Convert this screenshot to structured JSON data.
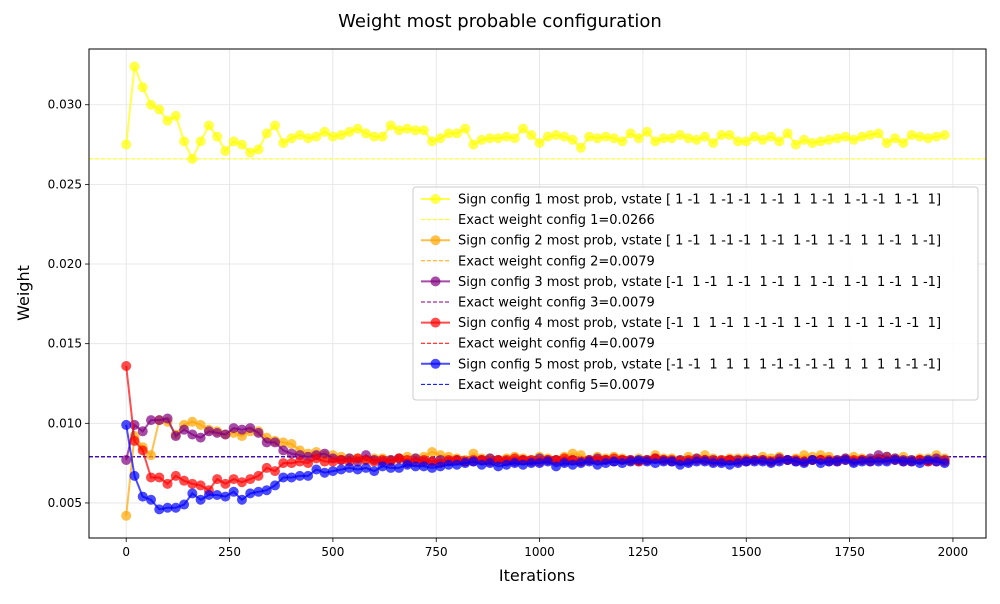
{
  "chart_data": {
    "type": "line",
    "title": "Weight most probable configuration",
    "xlabel": "Iterations",
    "ylabel": "Weight",
    "xlim": [
      -90,
      2080
    ],
    "ylim": [
      0.0028,
      0.0335
    ],
    "xticks": [
      0,
      250,
      500,
      750,
      1000,
      1250,
      1500,
      1750,
      2000
    ],
    "xtick_labels": [
      "0",
      "250",
      "500",
      "750",
      "1000",
      "1250",
      "1500",
      "1750",
      "2000"
    ],
    "yticks": [
      0.005,
      0.01,
      0.015,
      0.02,
      0.025,
      0.03
    ],
    "ytick_labels": [
      "0.005",
      "0.010",
      "0.015",
      "0.020",
      "0.025",
      "0.030"
    ],
    "grid": true,
    "legend_position": "center-right",
    "x": [
      0,
      20,
      40,
      60,
      80,
      100,
      120,
      140,
      160,
      180,
      200,
      220,
      240,
      260,
      280,
      300,
      320,
      340,
      360,
      380,
      400,
      420,
      440,
      460,
      480,
      500,
      520,
      540,
      560,
      580,
      600,
      620,
      640,
      660,
      680,
      700,
      720,
      740,
      760,
      780,
      800,
      820,
      840,
      860,
      880,
      900,
      920,
      940,
      960,
      980,
      1000,
      1020,
      1040,
      1060,
      1080,
      1100,
      1120,
      1140,
      1160,
      1180,
      1200,
      1220,
      1240,
      1260,
      1280,
      1300,
      1320,
      1340,
      1360,
      1380,
      1400,
      1420,
      1440,
      1460,
      1480,
      1500,
      1520,
      1540,
      1560,
      1580,
      1600,
      1620,
      1640,
      1660,
      1680,
      1700,
      1720,
      1740,
      1760,
      1780,
      1800,
      1820,
      1840,
      1860,
      1880,
      1900,
      1920,
      1940,
      1960,
      1980
    ],
    "series": [
      {
        "name": "Sign config 1 most prob, vstate [ 1 -1  1 -1 -1  1 -1  1  1 -1  1 -1 -1  1 -1  1]",
        "color": "#ffff00",
        "values": [
          0.0275,
          0.0324,
          0.0311,
          0.03,
          0.0297,
          0.029,
          0.0293,
          0.0277,
          0.0266,
          0.0277,
          0.0287,
          0.028,
          0.0271,
          0.0277,
          0.0275,
          0.027,
          0.0272,
          0.0282,
          0.0287,
          0.0276,
          0.0279,
          0.0281,
          0.0279,
          0.028,
          0.0283,
          0.028,
          0.0281,
          0.0283,
          0.0285,
          0.0282,
          0.028,
          0.028,
          0.0287,
          0.0284,
          0.0285,
          0.0284,
          0.0284,
          0.0277,
          0.0279,
          0.0282,
          0.0282,
          0.0285,
          0.0275,
          0.0278,
          0.0279,
          0.0279,
          0.028,
          0.0279,
          0.0285,
          0.0281,
          0.0276,
          0.028,
          0.0281,
          0.028,
          0.0278,
          0.0273,
          0.028,
          0.0279,
          0.028,
          0.0279,
          0.0277,
          0.0282,
          0.0279,
          0.0283,
          0.0277,
          0.0279,
          0.0279,
          0.0281,
          0.0279,
          0.0278,
          0.028,
          0.0276,
          0.0281,
          0.0281,
          0.0277,
          0.0277,
          0.028,
          0.0278,
          0.028,
          0.0277,
          0.0282,
          0.0275,
          0.0278,
          0.0276,
          0.0277,
          0.0278,
          0.0279,
          0.028,
          0.0278,
          0.028,
          0.0281,
          0.0282,
          0.0276,
          0.0279,
          0.0276,
          0.0281,
          0.028,
          0.0279,
          0.028,
          0.0281
        ]
      },
      {
        "name": "Sign config 2 most prob, vstate [ 1 -1  1 -1 -1  1 -1  1 -1  1 -1  1  1 -1  1 -1]",
        "color": "#ffa500",
        "values": [
          0.0042,
          0.0092,
          0.0085,
          0.008,
          0.0102,
          0.0101,
          0.0093,
          0.0099,
          0.0101,
          0.0099,
          0.0096,
          0.0095,
          0.0093,
          0.0094,
          0.0092,
          0.0095,
          0.0095,
          0.0091,
          0.0089,
          0.0088,
          0.0087,
          0.0083,
          0.0081,
          0.0082,
          0.008,
          0.008,
          0.0079,
          0.0078,
          0.0078,
          0.0077,
          0.0078,
          0.0078,
          0.0077,
          0.0078,
          0.0079,
          0.0078,
          0.0079,
          0.0082,
          0.008,
          0.0079,
          0.0078,
          0.0077,
          0.0081,
          0.0078,
          0.0078,
          0.0077,
          0.0078,
          0.0079,
          0.0078,
          0.0077,
          0.0079,
          0.0078,
          0.0077,
          0.0079,
          0.0081,
          0.008,
          0.0077,
          0.0079,
          0.0078,
          0.0079,
          0.0078,
          0.0076,
          0.0078,
          0.0077,
          0.008,
          0.0078,
          0.0078,
          0.0077,
          0.0079,
          0.0078,
          0.008,
          0.0078,
          0.0077,
          0.0078,
          0.0078,
          0.0078,
          0.0077,
          0.0079,
          0.0078,
          0.0079,
          0.0077,
          0.0078,
          0.008,
          0.0079,
          0.008,
          0.0079,
          0.0077,
          0.0078,
          0.0079,
          0.0078,
          0.0077,
          0.0078,
          0.0079,
          0.0078,
          0.0079,
          0.0077,
          0.0078,
          0.0078,
          0.008,
          0.0078
        ]
      },
      {
        "name": "Sign config 3 most prob, vstate [-1  1 -1  1 -1  1 -1  1  1 -1  1 -1  1 -1  1 -1]",
        "color": "#800080",
        "values": [
          0.0077,
          0.0099,
          0.0095,
          0.0102,
          0.0102,
          0.0103,
          0.0092,
          0.0096,
          0.0093,
          0.0091,
          0.0095,
          0.0094,
          0.0093,
          0.0097,
          0.0096,
          0.0097,
          0.0094,
          0.0088,
          0.0088,
          0.0083,
          0.0081,
          0.008,
          0.0079,
          0.008,
          0.0081,
          0.0078,
          0.0077,
          0.0078,
          0.0076,
          0.008,
          0.0077,
          0.0076,
          0.0077,
          0.0078,
          0.0075,
          0.0078,
          0.0076,
          0.0076,
          0.0077,
          0.0076,
          0.0077,
          0.0076,
          0.0076,
          0.0077,
          0.0078,
          0.0077,
          0.0076,
          0.0076,
          0.0077,
          0.0076,
          0.0078,
          0.0077,
          0.0077,
          0.0076,
          0.0077,
          0.0076,
          0.0077,
          0.0078,
          0.0077,
          0.0076,
          0.0077,
          0.0077,
          0.0076,
          0.0077,
          0.0078,
          0.0077,
          0.0076,
          0.0077,
          0.0076,
          0.0078,
          0.0077,
          0.0077,
          0.0076,
          0.0077,
          0.0077,
          0.0076,
          0.0077,
          0.0077,
          0.0076,
          0.0078,
          0.0077,
          0.0076,
          0.0076,
          0.0077,
          0.0077,
          0.0076,
          0.0077,
          0.0078,
          0.0076,
          0.0077,
          0.0078,
          0.008,
          0.0079,
          0.0078,
          0.0077,
          0.0077,
          0.0077,
          0.0076,
          0.0078,
          0.0077
        ]
      },
      {
        "name": "Sign config 4 most prob, vstate [-1  1  1 -1  1 -1 -1  1 -1  1  1 -1  1 -1 -1  1]",
        "color": "#ff0000",
        "values": [
          0.0136,
          0.0089,
          0.0083,
          0.0066,
          0.0066,
          0.0062,
          0.0067,
          0.0064,
          0.0062,
          0.0061,
          0.0058,
          0.0065,
          0.0062,
          0.0065,
          0.0063,
          0.0065,
          0.0067,
          0.0072,
          0.007,
          0.0075,
          0.0075,
          0.0076,
          0.0075,
          0.0078,
          0.0076,
          0.0076,
          0.0077,
          0.0076,
          0.0078,
          0.0077,
          0.0076,
          0.0077,
          0.0076,
          0.0078,
          0.0077,
          0.0076,
          0.0077,
          0.0076,
          0.0075,
          0.0077,
          0.0077,
          0.0076,
          0.0077,
          0.0077,
          0.0076,
          0.0077,
          0.0077,
          0.0078,
          0.0077,
          0.0077,
          0.0076,
          0.0077,
          0.0077,
          0.0078,
          0.0077,
          0.0076,
          0.0077,
          0.0077,
          0.0077,
          0.0078,
          0.0077,
          0.0077,
          0.0076,
          0.0077,
          0.0078,
          0.0077,
          0.0077,
          0.0076,
          0.0077,
          0.0077,
          0.0077,
          0.0076,
          0.0077,
          0.0077,
          0.0076,
          0.0077,
          0.0077,
          0.0077,
          0.0076,
          0.0077,
          0.0077,
          0.0077,
          0.0076,
          0.0077,
          0.0077,
          0.0077,
          0.0076,
          0.0077,
          0.0077,
          0.0077,
          0.0076,
          0.0077,
          0.0077,
          0.0077,
          0.0076,
          0.0076,
          0.0077,
          0.0076,
          0.0076,
          0.0076
        ]
      },
      {
        "name": "Sign config 5 most prob, vstate [-1 -1  1  1  1  1 -1 -1 -1 -1  1  1  1  1 -1 -1]",
        "color": "#0000ff",
        "values": [
          0.0099,
          0.0067,
          0.0054,
          0.0052,
          0.0046,
          0.0047,
          0.0047,
          0.0049,
          0.0056,
          0.0052,
          0.0055,
          0.0055,
          0.0054,
          0.0057,
          0.0052,
          0.0056,
          0.0057,
          0.0058,
          0.0061,
          0.0066,
          0.0066,
          0.0067,
          0.0067,
          0.0071,
          0.0069,
          0.007,
          0.0071,
          0.0072,
          0.0071,
          0.0072,
          0.007,
          0.0073,
          0.0072,
          0.0072,
          0.0074,
          0.0073,
          0.0073,
          0.0072,
          0.0073,
          0.0074,
          0.0074,
          0.0075,
          0.0076,
          0.0074,
          0.0075,
          0.0073,
          0.0074,
          0.0075,
          0.0074,
          0.0075,
          0.0075,
          0.0076,
          0.0073,
          0.0075,
          0.0074,
          0.0075,
          0.0076,
          0.0074,
          0.0075,
          0.0076,
          0.0075,
          0.0076,
          0.0077,
          0.0076,
          0.0075,
          0.0076,
          0.0076,
          0.0074,
          0.0075,
          0.0076,
          0.0076,
          0.0075,
          0.0075,
          0.0074,
          0.0075,
          0.0076,
          0.0076,
          0.0076,
          0.0075,
          0.0076,
          0.0077,
          0.0076,
          0.0075,
          0.0077,
          0.0075,
          0.0076,
          0.0076,
          0.0077,
          0.0075,
          0.0076,
          0.0076,
          0.0076,
          0.0076,
          0.0077,
          0.0076,
          0.0076,
          0.0075,
          0.0077,
          0.0076,
          0.0075
        ]
      }
    ],
    "reference_lines": [
      {
        "label": "Exact weight config 1=0.0266",
        "value": 0.0266,
        "color": "#ffff00"
      },
      {
        "label": "Exact weight config 2=0.0079",
        "value": 0.0079,
        "color": "#ffa500"
      },
      {
        "label": "Exact weight config 3=0.0079",
        "value": 0.0079,
        "color": "#800080"
      },
      {
        "label": "Exact weight config 4=0.0079",
        "value": 0.0079,
        "color": "#ff0000"
      },
      {
        "label": "Exact weight config 5=0.0079",
        "value": 0.0079,
        "color": "#0000ff"
      }
    ]
  }
}
